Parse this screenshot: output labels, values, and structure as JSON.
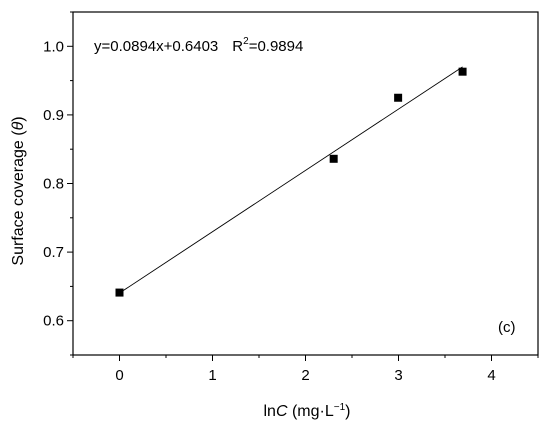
{
  "chart_data": {
    "type": "scatter",
    "title": "",
    "xlabel": "lnC (mg·L⁻¹)",
    "ylabel": "Surface coverage (θ)",
    "xlim": [
      -0.5,
      4.5
    ],
    "ylim": [
      0.55,
      1.05
    ],
    "x_ticks": [
      0,
      1,
      2,
      3,
      4
    ],
    "y_ticks": [
      0.6,
      0.7,
      0.8,
      0.9,
      1.0
    ],
    "x_tick_labels": [
      "0",
      "1",
      "2",
      "3",
      "4"
    ],
    "y_tick_labels": [
      "0.6",
      "0.7",
      "0.8",
      "0.9",
      "1.0"
    ],
    "series": [
      {
        "marker": "square",
        "color": "#000000",
        "x": [
          0,
          2.303,
          2.996,
          3.689
        ],
        "y": [
          0.641,
          0.836,
          0.925,
          0.963
        ]
      }
    ],
    "fit_line": {
      "slope": 0.0894,
      "intercept": 0.6403,
      "x_range": [
        0,
        3.689
      ]
    },
    "annotations": {
      "equation": "y=0.0894x+0.6403",
      "r2_prefix": "R",
      "r2_sup": "2",
      "r2_value": "=0.9894",
      "panel_label": "(c)"
    },
    "axis_title_parts": {
      "x_main": "ln",
      "x_italic": "C",
      "x_unit": " (mg·L",
      "x_sup": "−1",
      "x_close": ")",
      "y_main": "Surface coverage (",
      "y_italic": "θ",
      "y_close": ")"
    },
    "grid": false,
    "legend": "none"
  }
}
